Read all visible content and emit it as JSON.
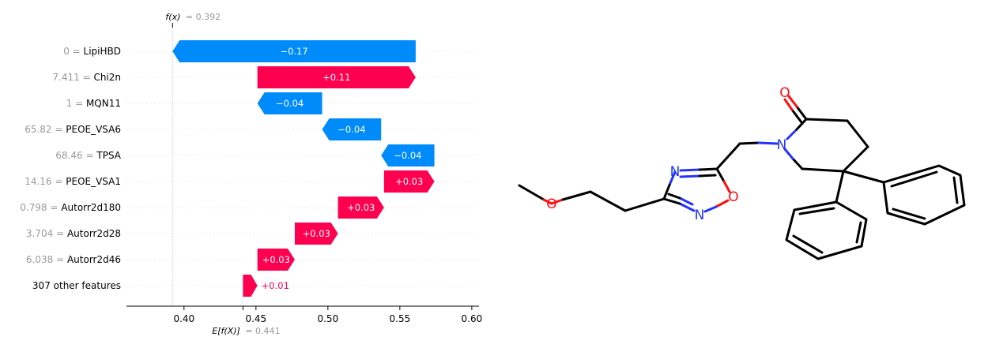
{
  "chart_data": {
    "type": "waterfall",
    "fx_label": "f(x)",
    "fx_value_text": "= 0.392",
    "fx_value": 0.392,
    "base_label": "E[f(X)]",
    "base_value_text": "= 0.441",
    "base_value": 0.441,
    "xlim": [
      0.36,
      0.605
    ],
    "xticks": [
      0.4,
      0.45,
      0.5,
      0.55,
      0.6
    ],
    "xtick_labels": [
      "0.40",
      "0.45",
      "0.50",
      "0.55",
      "0.60"
    ],
    "colors": {
      "positive": "#ff0051",
      "negative": "#008bfb"
    },
    "features": [
      {
        "value": "0",
        "name": "LipiHBD",
        "contribution": -0.17,
        "label": "−0.17",
        "start": 0.392,
        "end": 0.561
      },
      {
        "value": "7.411",
        "name": "Chi2n",
        "contribution": 0.11,
        "label": "+0.11",
        "start": 0.451,
        "end": 0.561
      },
      {
        "value": "1",
        "name": "MQN11",
        "contribution": -0.04,
        "label": "−0.04",
        "start": 0.451,
        "end": 0.496
      },
      {
        "value": "65.82",
        "name": "PEOE_VSA6",
        "contribution": -0.04,
        "label": "−0.04",
        "start": 0.496,
        "end": 0.537
      },
      {
        "value": "68.46",
        "name": "TPSA",
        "contribution": -0.04,
        "label": "−0.04",
        "start": 0.537,
        "end": 0.574
      },
      {
        "value": "14.16",
        "name": "PEOE_VSA1",
        "contribution": 0.03,
        "label": "+0.03",
        "start": 0.539,
        "end": 0.574
      },
      {
        "value": "0.798",
        "name": "Autorr2d180",
        "contribution": 0.03,
        "label": "+0.03",
        "start": 0.507,
        "end": 0.539
      },
      {
        "value": "3.704",
        "name": "Autorr2d28",
        "contribution": 0.03,
        "label": "+0.03",
        "start": 0.477,
        "end": 0.507
      },
      {
        "value": "6.038",
        "name": "Autorr2d46",
        "contribution": 0.03,
        "label": "+0.03",
        "start": 0.451,
        "end": 0.477
      },
      {
        "value": "",
        "name": "307 other features",
        "contribution": 0.01,
        "label": "+0.01",
        "start": 0.441,
        "end": 0.451
      }
    ]
  },
  "molecule": {
    "atom_labels": [
      "O",
      "N",
      "N",
      "N",
      "O",
      "O"
    ],
    "colors": {
      "bond": "#000000",
      "oxygen": "#ff0d0d",
      "nitrogen": "#2233ff"
    }
  }
}
